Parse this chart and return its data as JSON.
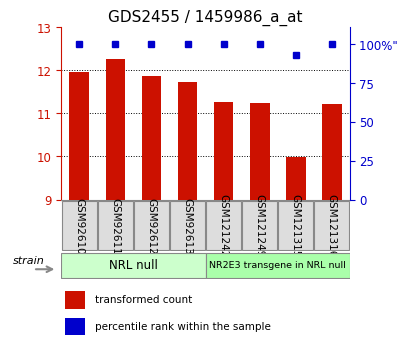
{
  "title": "GDS2455 / 1459986_a_at",
  "samples": [
    "GSM92610",
    "GSM92611",
    "GSM92612",
    "GSM92613",
    "GSM121242",
    "GSM121249",
    "GSM121315",
    "GSM121316"
  ],
  "bar_values": [
    11.95,
    12.25,
    11.87,
    11.72,
    11.27,
    11.25,
    9.98,
    11.22
  ],
  "percentile_values": [
    100,
    100,
    100,
    100,
    100,
    100,
    93,
    100
  ],
  "ylim": [
    9,
    13
  ],
  "yticks": [
    9,
    10,
    11,
    12,
    13
  ],
  "right_yticks": [
    0,
    25,
    50,
    75,
    100
  ],
  "right_ylim": [
    0,
    111
  ],
  "bar_color": "#cc1100",
  "percentile_color": "#0000cc",
  "background_color": "#ffffff",
  "groups": [
    {
      "label": "NRL null",
      "start": 0,
      "end": 4,
      "color": "#ccffcc"
    },
    {
      "label": "NR2E3 transgene in NRL null",
      "start": 4,
      "end": 8,
      "color": "#aaffaa"
    }
  ],
  "legend_items": [
    {
      "label": "transformed count",
      "color": "#cc1100"
    },
    {
      "label": "percentile rank within the sample",
      "color": "#0000cc"
    }
  ],
  "strain_label": "strain",
  "title_fontsize": 11,
  "tick_fontsize": 8.5,
  "label_fontsize": 8,
  "grid_lines": [
    10,
    11,
    12
  ],
  "dotted_color": "black",
  "sample_box_color": "#dddddd",
  "spine_color": "#888888"
}
